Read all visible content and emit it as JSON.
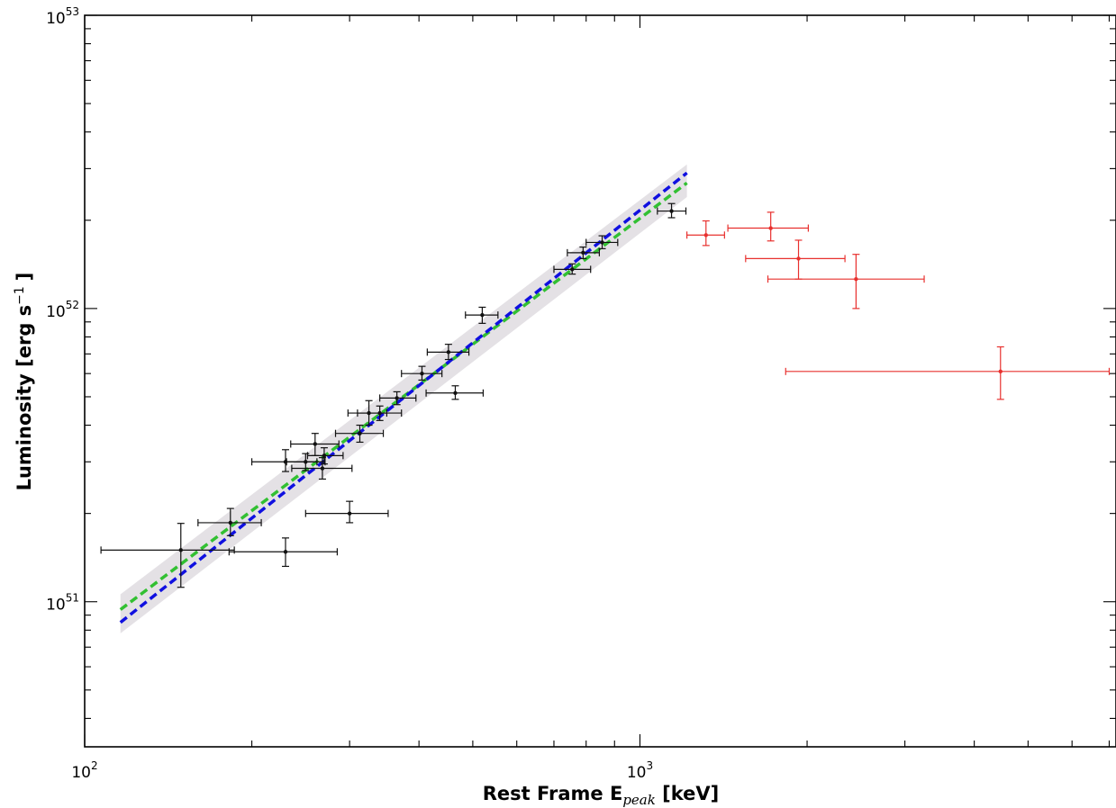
{
  "chart_data": {
    "type": "scatter",
    "title": "",
    "xlabel": "Rest Frame E",
    "xlabel_sub": "peak",
    "xlabel_unit": " [keV]",
    "ylabel": "Luminosity [erg s",
    "ylabel_sup": "−1",
    "ylabel_end": "]",
    "xscale": "log",
    "yscale": "log",
    "xlim": [
      100,
      7200
    ],
    "ylim": [
      3.2e+50,
      1e+53
    ],
    "grid": false,
    "x_tick_labels": [
      {
        "value": 100,
        "base": "10",
        "exp": "2"
      },
      {
        "value": 1000,
        "base": "10",
        "exp": "3"
      }
    ],
    "y_tick_labels": [
      {
        "value": 1e+51,
        "base": "10",
        "exp": "51"
      },
      {
        "value": 1e+52,
        "base": "10",
        "exp": "52"
      },
      {
        "value": 1e+53,
        "base": "10",
        "exp": "53"
      }
    ],
    "band": {
      "color": "#e4e1e5",
      "x": [
        116,
        1215
      ],
      "lower": [
        7.8e+50,
        2.4e+52
      ],
      "upper": [
        1.06e+51,
        3.1e+52
      ]
    },
    "fit_lines": [
      {
        "color": "#32c032",
        "x": [
          116,
          1215
        ],
        "y": [
          9.4e+50,
          2.68e+52
        ]
      },
      {
        "color": "#1010e0",
        "x": [
          116,
          1215
        ],
        "y": [
          8.5e+50,
          2.9e+52
        ]
      }
    ],
    "series": [
      {
        "color": "#111111",
        "points": [
          {
            "x": 149,
            "y": 1.5e+51,
            "xerr": [
              107,
              186
            ],
            "yerr": [
              1.12e+51,
              1.85e+51
            ]
          },
          {
            "x": 183,
            "y": 1.86e+51,
            "xerr": [
              160,
              208
            ],
            "yerr": [
              1.68e+51,
              2.08e+51
            ]
          },
          {
            "x": 230,
            "y": 1.48e+51,
            "xerr": [
              182,
              285
            ],
            "yerr": [
              1.32e+51,
              1.65e+51
            ]
          },
          {
            "x": 230,
            "y": 3e+51,
            "xerr": [
              200,
              262
            ],
            "yerr": [
              2.78e+51,
              3.3e+51
            ]
          },
          {
            "x": 250,
            "y": 3e+51,
            "xerr": [
              231,
              271
            ],
            "yerr": [
              2.8e+51,
              3.2e+51
            ]
          },
          {
            "x": 260,
            "y": 3.45e+51,
            "xerr": [
              235,
              287
            ],
            "yerr": [
              3.15e+51,
              3.75e+51
            ]
          },
          {
            "x": 268,
            "y": 2.85e+51,
            "xerr": [
              236,
              303
            ],
            "yerr": [
              2.62e+51,
              3.1e+51
            ]
          },
          {
            "x": 270,
            "y": 3.15e+51,
            "xerr": [
              252,
              292
            ],
            "yerr": [
              2.95e+51,
              3.35e+51
            ]
          },
          {
            "x": 300,
            "y": 2e+51,
            "xerr": [
              250,
              352
            ],
            "yerr": [
              1.86e+51,
              2.2e+51
            ]
          },
          {
            "x": 313,
            "y": 3.75e+51,
            "xerr": [
              283,
              345
            ],
            "yerr": [
              3.5e+51,
              4e+51
            ]
          },
          {
            "x": 325,
            "y": 4.4e+51,
            "xerr": [
              298,
              350
            ],
            "yerr": [
              4e+51,
              4.85e+51
            ]
          },
          {
            "x": 340,
            "y": 4.4e+51,
            "xerr": [
              310,
              372
            ],
            "yerr": [
              4.15e+51,
              4.65e+51
            ]
          },
          {
            "x": 365,
            "y": 4.95e+51,
            "xerr": [
              340,
              395
            ],
            "yerr": [
              4.7e+51,
              5.2e+51
            ]
          },
          {
            "x": 405,
            "y": 6e+51,
            "xerr": [
              372,
              440
            ],
            "yerr": [
              5.7e+51,
              6.35e+51
            ]
          },
          {
            "x": 452,
            "y": 7.1e+51,
            "xerr": [
              414,
              492
            ],
            "yerr": [
              6.7e+51,
              7.55e+51
            ]
          },
          {
            "x": 465,
            "y": 5.15e+51,
            "xerr": [
              412,
              522
            ],
            "yerr": [
              4.9e+51,
              5.45e+51
            ]
          },
          {
            "x": 520,
            "y": 9.5e+51,
            "xerr": [
              485,
              555
            ],
            "yerr": [
              8.9e+51,
              1.01e+52
            ]
          },
          {
            "x": 755,
            "y": 1.36e+52,
            "xerr": [
              700,
              815
            ],
            "yerr": [
              1.31e+52,
              1.42e+52
            ]
          },
          {
            "x": 790,
            "y": 1.55e+52,
            "xerr": [
              740,
              845
            ],
            "yerr": [
              1.48e+52,
              1.62e+52
            ]
          },
          {
            "x": 855,
            "y": 1.68e+52,
            "xerr": [
              800,
              912
            ],
            "yerr": [
              1.6e+52,
              1.77e+52
            ]
          },
          {
            "x": 1140,
            "y": 2.15e+52,
            "xerr": [
              1075,
              1210
            ],
            "yerr": [
              2.04e+52,
              2.28e+52
            ]
          }
        ]
      },
      {
        "color": "#e8302e",
        "points": [
          {
            "x": 1315,
            "y": 1.78e+52,
            "xerr": [
              1215,
              1420
            ],
            "yerr": [
              1.64e+52,
              1.99e+52
            ]
          },
          {
            "x": 1720,
            "y": 1.88e+52,
            "xerr": [
              1440,
              2010
            ],
            "yerr": [
              1.7e+52,
              2.13e+52
            ]
          },
          {
            "x": 1930,
            "y": 1.48e+52,
            "xerr": [
              1550,
              2340
            ],
            "yerr": [
              1.26e+52,
              1.71e+52
            ]
          },
          {
            "x": 2450,
            "y": 1.26e+52,
            "xerr": [
              1700,
              3250
            ],
            "yerr": [
              1e+52,
              1.53e+52
            ]
          },
          {
            "x": 4460,
            "y": 6.1e+51,
            "xerr": [
              1830,
              7000
            ],
            "yerr": [
              4.9e+51,
              7.4e+51
            ]
          }
        ]
      }
    ]
  }
}
